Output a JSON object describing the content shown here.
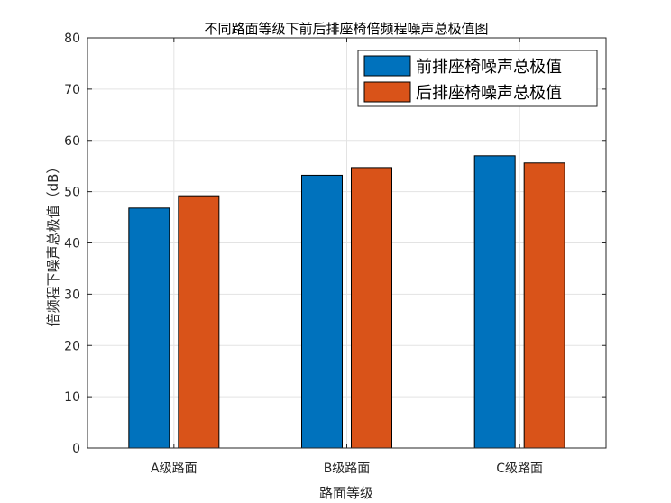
{
  "chart_data": {
    "type": "bar",
    "title": "不同路面等级下前后排座椅倍频程噪声总极值图",
    "xlabel": "路面等级",
    "ylabel": "倍频程下噪声总极值（dB）",
    "categories": [
      "A级路面",
      "B级路面",
      "C级路面"
    ],
    "series": [
      {
        "name": "前排座椅噪声总极值",
        "color": "#0072BD",
        "values": [
          46.8,
          53.2,
          57.0
        ]
      },
      {
        "name": "后排座椅噪声总极值",
        "color": "#D95319",
        "values": [
          49.2,
          54.7,
          55.6
        ]
      }
    ],
    "ylim": [
      0,
      80
    ],
    "yticks": [
      0,
      10,
      20,
      30,
      40,
      50,
      60,
      70,
      80
    ],
    "grid": true,
    "legend_position": "top-right"
  }
}
